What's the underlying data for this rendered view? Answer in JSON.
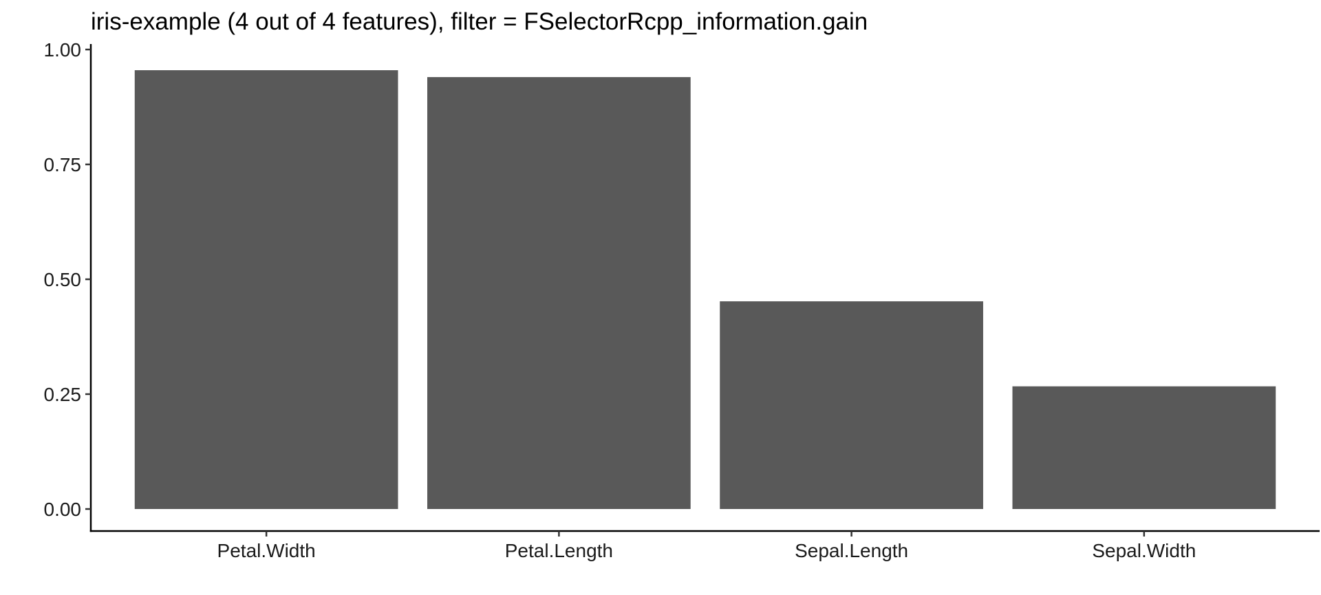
{
  "chart_data": {
    "type": "bar",
    "title": "iris-example (4 out of 4 features), filter = FSelectorRcpp_information.gain",
    "xlabel": "",
    "ylabel": "",
    "categories": [
      "Petal.Width",
      "Petal.Length",
      "Sepal.Length",
      "Sepal.Width"
    ],
    "values": [
      0.955,
      0.94,
      0.452,
      0.267
    ],
    "ylim": [
      0,
      1
    ],
    "yticks": [
      0.0,
      0.25,
      0.5,
      0.75,
      1.0
    ],
    "ytick_labels": [
      "0.00",
      "0.25",
      "0.50",
      "0.75",
      "1.00"
    ],
    "grid": false,
    "legend": "none",
    "bar_color": "#595959"
  }
}
